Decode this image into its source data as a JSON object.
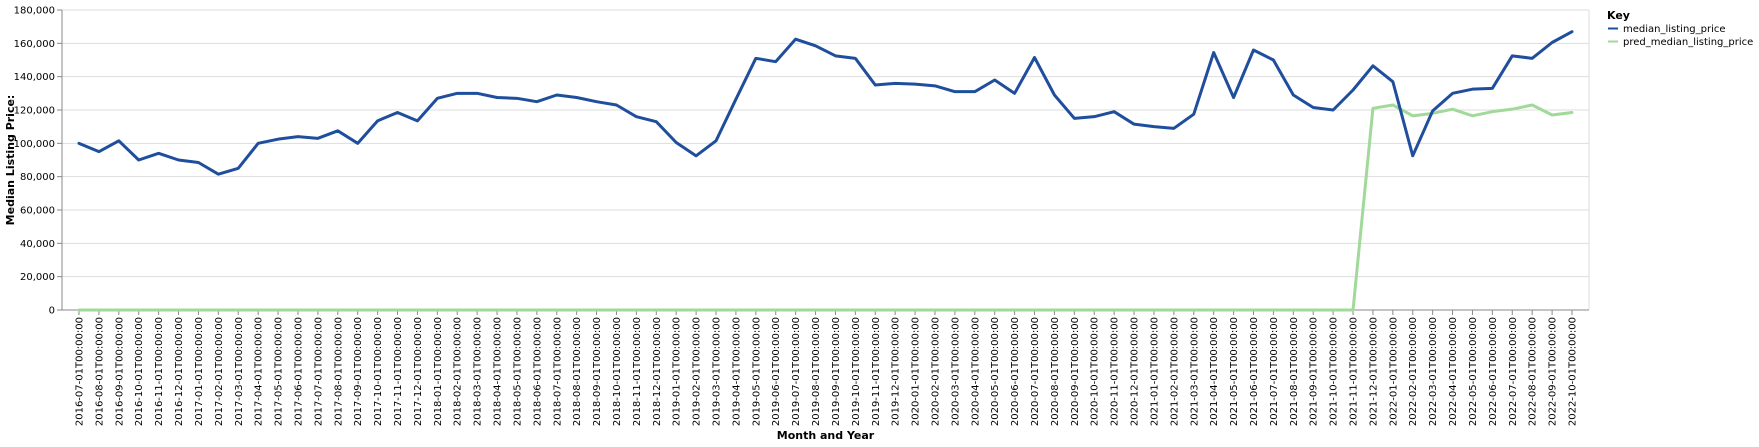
{
  "chart_data": {
    "type": "line",
    "title": "",
    "xlabel": "Month and Year",
    "ylabel": "Median Listing Price:",
    "ylim": [
      0,
      180000
    ],
    "yticks": [
      0,
      20000,
      40000,
      60000,
      80000,
      100000,
      120000,
      140000,
      160000,
      180000
    ],
    "ytick_labels": [
      "0",
      "20,000",
      "40,000",
      "60,000",
      "80,000",
      "100,000",
      "120,000",
      "140,000",
      "160,000",
      "180,000"
    ],
    "grid": true,
    "legend": {
      "title": "Key",
      "placement": "top-right"
    },
    "x": [
      "2016-07-01T00:00:00",
      "2016-08-01T00:00:00",
      "2016-09-01T00:00:00",
      "2016-10-01T00:00:00",
      "2016-11-01T00:00:00",
      "2016-12-01T00:00:00",
      "2017-01-01T00:00:00",
      "2017-02-01T00:00:00",
      "2017-03-01T00:00:00",
      "2017-04-01T00:00:00",
      "2017-05-01T00:00:00",
      "2017-06-01T00:00:00",
      "2017-07-01T00:00:00",
      "2017-08-01T00:00:00",
      "2017-09-01T00:00:00",
      "2017-10-01T00:00:00",
      "2017-11-01T00:00:00",
      "2017-12-01T00:00:00",
      "2018-01-01T00:00:00",
      "2018-02-01T00:00:00",
      "2018-03-01T00:00:00",
      "2018-04-01T00:00:00",
      "2018-05-01T00:00:00",
      "2018-06-01T00:00:00",
      "2018-07-01T00:00:00",
      "2018-08-01T00:00:00",
      "2018-09-01T00:00:00",
      "2018-10-01T00:00:00",
      "2018-11-01T00:00:00",
      "2018-12-01T00:00:00",
      "2019-01-01T00:00:00",
      "2019-02-01T00:00:00",
      "2019-03-01T00:00:00",
      "2019-04-01T00:00:00",
      "2019-05-01T00:00:00",
      "2019-06-01T00:00:00",
      "2019-07-01T00:00:00",
      "2019-08-01T00:00:00",
      "2019-09-01T00:00:00",
      "2019-10-01T00:00:00",
      "2019-11-01T00:00:00",
      "2019-12-01T00:00:00",
      "2020-01-01T00:00:00",
      "2020-02-01T00:00:00",
      "2020-03-01T00:00:00",
      "2020-04-01T00:00:00",
      "2020-05-01T00:00:00",
      "2020-06-01T00:00:00",
      "2020-07-01T00:00:00",
      "2020-08-01T00:00:00",
      "2020-09-01T00:00:00",
      "2020-10-01T00:00:00",
      "2020-11-01T00:00:00",
      "2020-12-01T00:00:00",
      "2021-01-01T00:00:00",
      "2021-02-01T00:00:00",
      "2021-03-01T00:00:00",
      "2021-04-01T00:00:00",
      "2021-05-01T00:00:00",
      "2021-06-01T00:00:00",
      "2021-07-01T00:00:00",
      "2021-08-01T00:00:00",
      "2021-09-01T00:00:00",
      "2021-10-01T00:00:00",
      "2021-11-01T00:00:00",
      "2021-12-01T00:00:00",
      "2022-01-01T00:00:00",
      "2022-02-01T00:00:00",
      "2022-03-01T00:00:00",
      "2022-04-01T00:00:00",
      "2022-05-01T00:00:00",
      "2022-06-01T00:00:00",
      "2022-07-01T00:00:00",
      "2022-08-01T00:00:00",
      "2022-09-01T00:00:00",
      "2022-10-01T00:00:00"
    ],
    "series": [
      {
        "name": "median_listing_price",
        "color": "#1f4e9c",
        "values": [
          100000,
          95000,
          101500,
          90000,
          94000,
          90000,
          88500,
          81500,
          85000,
          100000,
          102500,
          104000,
          103000,
          107500,
          100000,
          113500,
          118500,
          113500,
          127000,
          130000,
          130000,
          127500,
          127000,
          125000,
          129000,
          127500,
          125000,
          123000,
          116000,
          113000,
          100500,
          92500,
          101500,
          126500,
          151000,
          149000,
          162500,
          158500,
          152500,
          151000,
          135000,
          136000,
          135500,
          134500,
          131000,
          131000,
          138000,
          130000,
          151500,
          129000,
          115000,
          116000,
          119000,
          111500,
          110000,
          109000,
          117500,
          154500,
          127500,
          156000,
          150000,
          129000,
          121500,
          120000,
          132000,
          146500,
          137000,
          92500,
          119500,
          130000,
          132500,
          133000,
          152500,
          151000,
          160500,
          167000
        ]
      },
      {
        "name": "pred_median_listing_price",
        "color": "#a1d99b",
        "values": [
          0,
          0,
          0,
          0,
          0,
          0,
          0,
          0,
          0,
          0,
          0,
          0,
          0,
          0,
          0,
          0,
          0,
          0,
          0,
          0,
          0,
          0,
          0,
          0,
          0,
          0,
          0,
          0,
          0,
          0,
          0,
          0,
          0,
          0,
          0,
          0,
          0,
          0,
          0,
          0,
          0,
          0,
          0,
          0,
          0,
          0,
          0,
          0,
          0,
          0,
          0,
          0,
          0,
          0,
          0,
          0,
          0,
          0,
          0,
          0,
          0,
          0,
          0,
          0,
          0,
          121000,
          123000,
          116500,
          118000,
          120500,
          116500,
          119000,
          120500,
          123000,
          117000,
          118500
        ]
      }
    ]
  }
}
